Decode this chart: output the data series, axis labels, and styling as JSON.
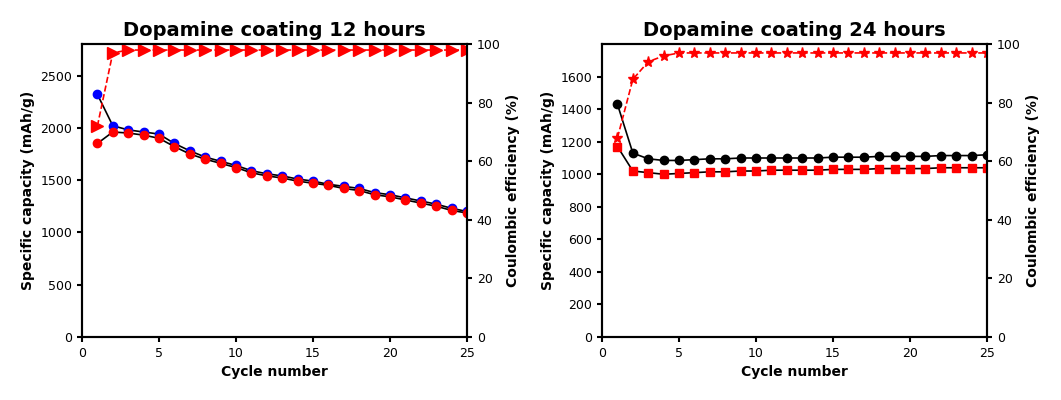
{
  "plot1": {
    "title": "Dopamine coating 12 hours",
    "xlabel": "Cycle number",
    "ylabel_left": "Specific capacity (mAh/g)",
    "ylabel_right": "Coulombic efficiency (%)",
    "xlim": [
      0,
      25
    ],
    "ylim_left": [
      0,
      2800
    ],
    "ylim_right": [
      0,
      100
    ],
    "yticks_left": [
      0,
      500,
      1000,
      1500,
      2000,
      2500
    ],
    "yticks_right": [
      0,
      20,
      40,
      60,
      80,
      100
    ],
    "xticks": [
      0,
      5,
      10,
      15,
      20,
      25
    ],
    "charge_x": [
      1,
      2,
      3,
      4,
      5,
      6,
      7,
      8,
      9,
      10,
      11,
      12,
      13,
      14,
      15,
      16,
      17,
      18,
      19,
      20,
      21,
      22,
      23,
      24,
      25
    ],
    "charge_y": [
      2320,
      2020,
      1980,
      1960,
      1940,
      1850,
      1780,
      1720,
      1680,
      1640,
      1590,
      1560,
      1540,
      1510,
      1490,
      1460,
      1440,
      1420,
      1380,
      1360,
      1330,
      1300,
      1270,
      1230,
      1200
    ],
    "discharge_x": [
      1,
      2,
      3,
      4,
      5,
      6,
      7,
      8,
      9,
      10,
      11,
      12,
      13,
      14,
      15,
      16,
      17,
      18,
      19,
      20,
      21,
      22,
      23,
      24,
      25
    ],
    "discharge_y": [
      1850,
      1960,
      1950,
      1930,
      1900,
      1820,
      1750,
      1700,
      1660,
      1620,
      1570,
      1540,
      1520,
      1490,
      1470,
      1450,
      1420,
      1400,
      1360,
      1340,
      1310,
      1280,
      1250,
      1210,
      1185
    ],
    "efficiency_x": [
      1,
      2,
      3,
      4,
      5,
      6,
      7,
      8,
      9,
      10,
      11,
      12,
      13,
      14,
      15,
      16,
      17,
      18,
      19,
      20,
      21,
      22,
      23,
      24,
      25
    ],
    "efficiency_y": [
      72,
      97,
      98,
      98,
      98,
      98,
      98,
      98,
      98,
      98,
      98,
      98,
      98,
      98,
      98,
      98,
      98,
      98,
      98,
      98,
      98,
      98,
      98,
      98,
      98
    ],
    "charge_color": "blue",
    "discharge_color": "red",
    "efficiency_color": "red",
    "charge_marker": "o",
    "discharge_marker": "o",
    "efficiency_marker": ">",
    "charge_line_color": "black",
    "discharge_line_color": "black",
    "efficiency_line_style": "--"
  },
  "plot2": {
    "title": "Dopamine coating 24 hours",
    "xlabel": "Cycle number",
    "ylabel_left": "Specific capacity (mAh/g)",
    "ylabel_right": "Coulombic efficiency (%)",
    "xlim": [
      0,
      25
    ],
    "ylim_left": [
      0,
      1800
    ],
    "ylim_right": [
      0,
      100
    ],
    "yticks_left": [
      0,
      200,
      400,
      600,
      800,
      1000,
      1200,
      1400,
      1600
    ],
    "yticks_right": [
      0,
      20,
      40,
      60,
      80,
      100
    ],
    "xticks": [
      0,
      5,
      10,
      15,
      20,
      25
    ],
    "charge_x": [
      1,
      2,
      3,
      4,
      5,
      6,
      7,
      8,
      9,
      10,
      11,
      12,
      13,
      14,
      15,
      16,
      17,
      18,
      19,
      20,
      21,
      22,
      23,
      24,
      25
    ],
    "charge_y": [
      1430,
      1130,
      1095,
      1085,
      1085,
      1090,
      1095,
      1095,
      1100,
      1100,
      1100,
      1100,
      1100,
      1100,
      1105,
      1105,
      1105,
      1110,
      1110,
      1110,
      1110,
      1115,
      1115,
      1115,
      1120
    ],
    "discharge_x": [
      1,
      2,
      3,
      4,
      5,
      6,
      7,
      8,
      9,
      10,
      11,
      12,
      13,
      14,
      15,
      16,
      17,
      18,
      19,
      20,
      21,
      22,
      23,
      24,
      25
    ],
    "discharge_y": [
      1170,
      1020,
      1010,
      1000,
      1005,
      1010,
      1015,
      1015,
      1020,
      1020,
      1025,
      1025,
      1025,
      1025,
      1030,
      1030,
      1030,
      1035,
      1035,
      1035,
      1035,
      1040,
      1040,
      1040,
      1040
    ],
    "efficiency_x": [
      1,
      2,
      3,
      4,
      5,
      6,
      7,
      8,
      9,
      10,
      11,
      12,
      13,
      14,
      15,
      16,
      17,
      18,
      19,
      20,
      21,
      22,
      23,
      24,
      25
    ],
    "efficiency_y": [
      68,
      88,
      94,
      96,
      97,
      97,
      97,
      97,
      97,
      97,
      97,
      97,
      97,
      97,
      97,
      97,
      97,
      97,
      97,
      97,
      97,
      97,
      97,
      97,
      97
    ],
    "charge_color": "black",
    "discharge_color": "red",
    "efficiency_color": "red",
    "charge_marker": "o",
    "discharge_marker": "s",
    "efficiency_marker": "*",
    "charge_line_color": "black",
    "discharge_line_color": "black",
    "efficiency_line_style": "--"
  },
  "title_fontsize": 14,
  "label_fontsize": 10,
  "tick_fontsize": 9,
  "marker_size": 6,
  "line_width": 1.2,
  "background_color": "#ffffff"
}
